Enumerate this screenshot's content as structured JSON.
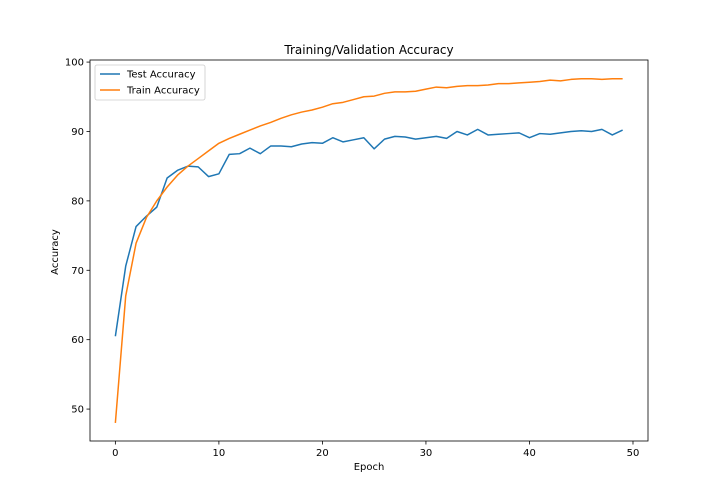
{
  "chart_data": {
    "type": "line",
    "title": "Training/Validation Accuracy",
    "xlabel": "Epoch",
    "ylabel": "Accuracy",
    "xlim": [
      -2.45,
      51.45
    ],
    "ylim": [
      45.4,
      100.3
    ],
    "xticks": [
      0,
      10,
      20,
      30,
      40,
      50
    ],
    "yticks": [
      50,
      60,
      70,
      80,
      90,
      100
    ],
    "grid": false,
    "legend": "top-left",
    "x": [
      0,
      1,
      2,
      3,
      4,
      5,
      6,
      7,
      8,
      9,
      10,
      11,
      12,
      13,
      14,
      15,
      16,
      17,
      18,
      19,
      20,
      21,
      22,
      23,
      24,
      25,
      26,
      27,
      28,
      29,
      30,
      31,
      32,
      33,
      34,
      35,
      36,
      37,
      38,
      39,
      40,
      41,
      42,
      43,
      44,
      45,
      46,
      47,
      48,
      49
    ],
    "series": [
      {
        "name": "Test Accuracy",
        "color": "#1f77b4",
        "values": [
          60.5,
          70.6,
          76.3,
          77.8,
          79.1,
          83.3,
          84.4,
          85.0,
          84.9,
          83.5,
          83.9,
          86.7,
          86.8,
          87.6,
          86.8,
          87.9,
          87.9,
          87.8,
          88.2,
          88.4,
          88.3,
          89.1,
          88.5,
          88.8,
          89.1,
          87.5,
          88.9,
          89.3,
          89.2,
          88.9,
          89.1,
          89.3,
          89.0,
          90.0,
          89.5,
          90.3,
          89.5,
          89.6,
          89.7,
          89.8,
          89.1,
          89.7,
          89.6,
          89.8,
          90.0,
          90.1,
          90.0,
          90.3,
          89.5,
          90.2
        ]
      },
      {
        "name": "Train Accuracy",
        "color": "#ff7f0e",
        "values": [
          48.0,
          66.3,
          73.9,
          77.6,
          80.0,
          82.0,
          83.7,
          85.0,
          86.1,
          87.2,
          88.3,
          89.0,
          89.6,
          90.2,
          90.8,
          91.3,
          91.9,
          92.4,
          92.8,
          93.1,
          93.5,
          94.0,
          94.2,
          94.6,
          95.0,
          95.1,
          95.5,
          95.7,
          95.7,
          95.8,
          96.1,
          96.4,
          96.3,
          96.5,
          96.6,
          96.6,
          96.7,
          96.9,
          96.9,
          97.0,
          97.1,
          97.2,
          97.4,
          97.3,
          97.5,
          97.6,
          97.6,
          97.5,
          97.6,
          97.6
        ]
      }
    ]
  }
}
